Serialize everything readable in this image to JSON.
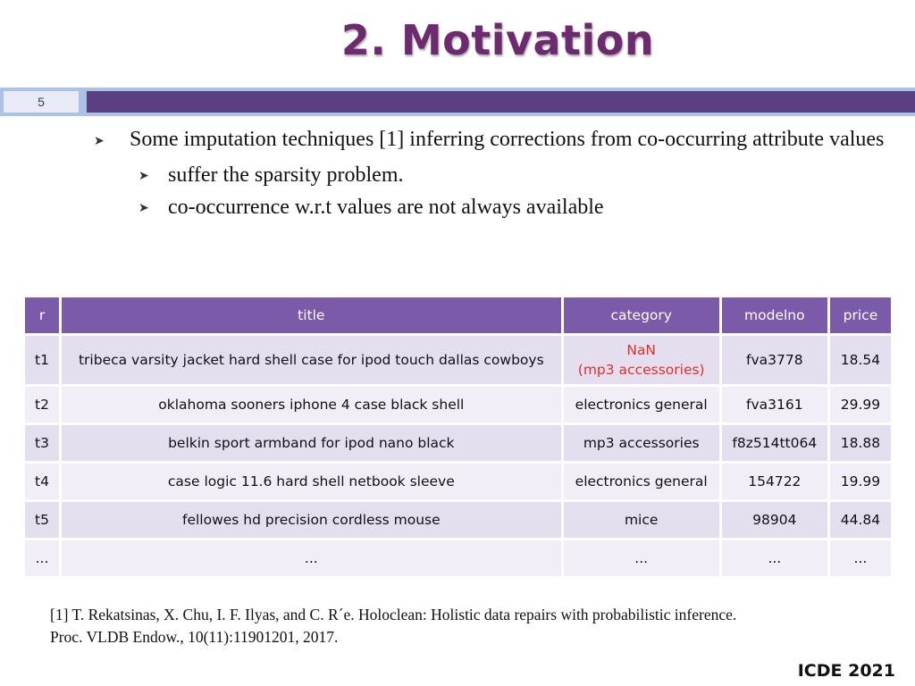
{
  "slide": {
    "title": "2. Motivation",
    "number": "5",
    "venue": "ICDE 2021"
  },
  "colors": {
    "title": "#6e2a6e",
    "band": "#5a3f82",
    "band_frame": "#a9c2e6",
    "table_header": "#7b5aaa",
    "row_odd": "#e4deef",
    "row_even": "#f1eef7",
    "error": "#e0302a"
  },
  "bullets": {
    "main": "Some imputation techniques [1] inferring corrections from co-occurring attribute values",
    "sub": [
      "suffer the sparsity problem.",
      "co-occurrence w.r.t values are not always available"
    ],
    "arrow_icon": "chevron-arrow-icon"
  },
  "table": {
    "headers": [
      "r",
      "title",
      "category",
      "modelno",
      "price"
    ],
    "rows": [
      {
        "r": "t1",
        "title": "tribeca varsity jacket hard shell case for ipod touch dallas cowboys",
        "category": "NaN",
        "category_note": "(mp3 accessories)",
        "modelno": "fva3778",
        "price": "18.54"
      },
      {
        "r": "t2",
        "title": "oklahoma sooners iphone 4 case black shell",
        "category": "electronics general",
        "modelno": "fva3161",
        "price": "29.99"
      },
      {
        "r": "t3",
        "title": "belkin sport armband for ipod nano black",
        "category": "mp3 accessories",
        "modelno": "f8z514tt064",
        "price": "18.88"
      },
      {
        "r": "t4",
        "title": "case logic 11.6 hard shell netbook sleeve",
        "category": "electronics general",
        "modelno": "154722",
        "price": "19.99"
      },
      {
        "r": "t5",
        "title": "fellowes hd precision cordless mouse",
        "category": "mice",
        "modelno": "98904",
        "price": "44.84"
      },
      {
        "r": "...",
        "title": "...",
        "category": "...",
        "modelno": "...",
        "price": "..."
      }
    ]
  },
  "reference": {
    "line1": "[1] T. Rekatsinas, X. Chu, I. F. Ilyas, and C. R´e. Holoclean: Holistic data repairs with probabilistic inference.",
    "line2": "Proc. VLDB Endow., 10(11):11901201, 2017."
  }
}
